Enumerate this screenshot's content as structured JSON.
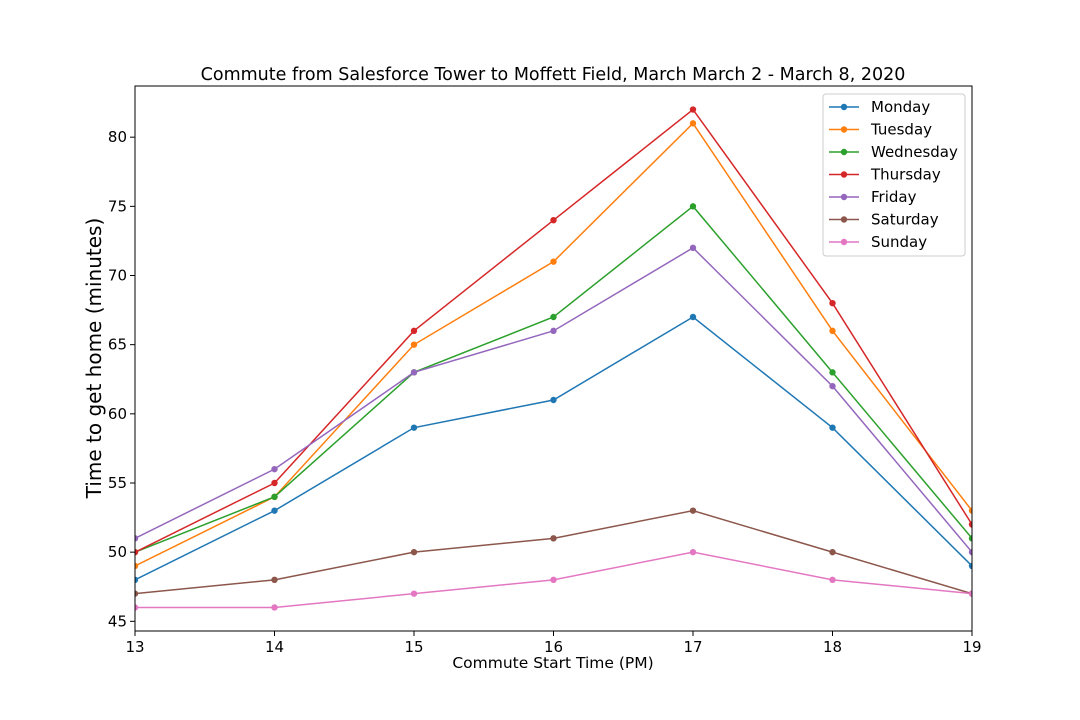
{
  "chart_data": {
    "type": "line",
    "title": "Commute from Salesforce Tower to Moffett Field, March March 2 - March 8, 2020",
    "xlabel": "Commute Start Time (PM)",
    "ylabel": "Time to get home (minutes)",
    "x": [
      13,
      14,
      15,
      16,
      17,
      18,
      19
    ],
    "xlim": [
      13,
      19
    ],
    "ylim": [
      44.3,
      83.7
    ],
    "xticks": [
      "13",
      "14",
      "15",
      "16",
      "17",
      "18",
      "19"
    ],
    "yticks": [
      "45",
      "50",
      "55",
      "60",
      "65",
      "70",
      "75",
      "80"
    ],
    "grid": false,
    "legend_position": "top-right",
    "series": [
      {
        "name": "Monday",
        "color": "#1f77b4",
        "values": [
          48,
          53,
          59,
          61,
          67,
          59,
          49
        ]
      },
      {
        "name": "Tuesday",
        "color": "#ff7f0e",
        "values": [
          49,
          54,
          65,
          71,
          81,
          66,
          53
        ]
      },
      {
        "name": "Wednesday",
        "color": "#2ca02c",
        "values": [
          50,
          54,
          63,
          67,
          75,
          63,
          51
        ]
      },
      {
        "name": "Thursday",
        "color": "#d62728",
        "values": [
          50,
          55,
          66,
          74,
          82,
          68,
          52
        ]
      },
      {
        "name": "Friday",
        "color": "#9467bd",
        "values": [
          51,
          56,
          63,
          66,
          72,
          62,
          50
        ]
      },
      {
        "name": "Saturday",
        "color": "#8c564b",
        "values": [
          47,
          48,
          50,
          51,
          53,
          50,
          47
        ]
      },
      {
        "name": "Sunday",
        "color": "#e377c2",
        "values": [
          46,
          46,
          47,
          48,
          50,
          48,
          47
        ]
      }
    ]
  }
}
